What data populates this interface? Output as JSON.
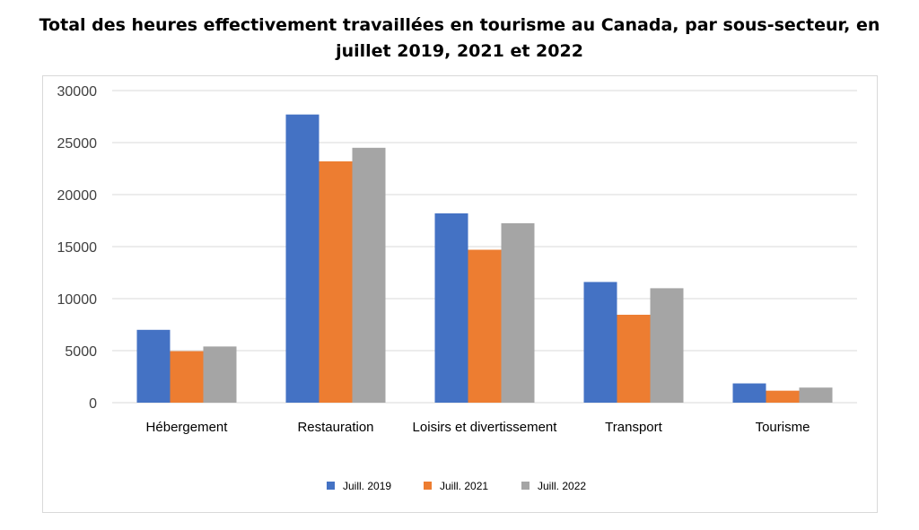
{
  "chart_data": {
    "type": "bar",
    "title": "Total des heures effectivement travaillées en tourisme au Canada, par sous-secteur, en juillet  2019, 2021 et 2022",
    "categories": [
      "Hébergement",
      "Restauration",
      "Loisirs et divertissement",
      "Transport",
      "Tourisme"
    ],
    "series": [
      {
        "name": "Juill. 2019",
        "color": "#4472c4",
        "values": [
          7000,
          27700,
          18200,
          11600,
          1850
        ]
      },
      {
        "name": "Juill. 2021",
        "color": "#ed7d31",
        "values": [
          4950,
          23200,
          14700,
          8450,
          1150
        ]
      },
      {
        "name": "Juill. 2022",
        "color": "#a5a5a5",
        "values": [
          5400,
          24500,
          17250,
          11000,
          1450
        ]
      }
    ],
    "ylim": [
      0,
      30000
    ],
    "yticks": [
      0,
      5000,
      10000,
      15000,
      20000,
      25000,
      30000
    ],
    "grid": true,
    "legend_position": "bottom",
    "xlabel": "",
    "ylabel": ""
  }
}
